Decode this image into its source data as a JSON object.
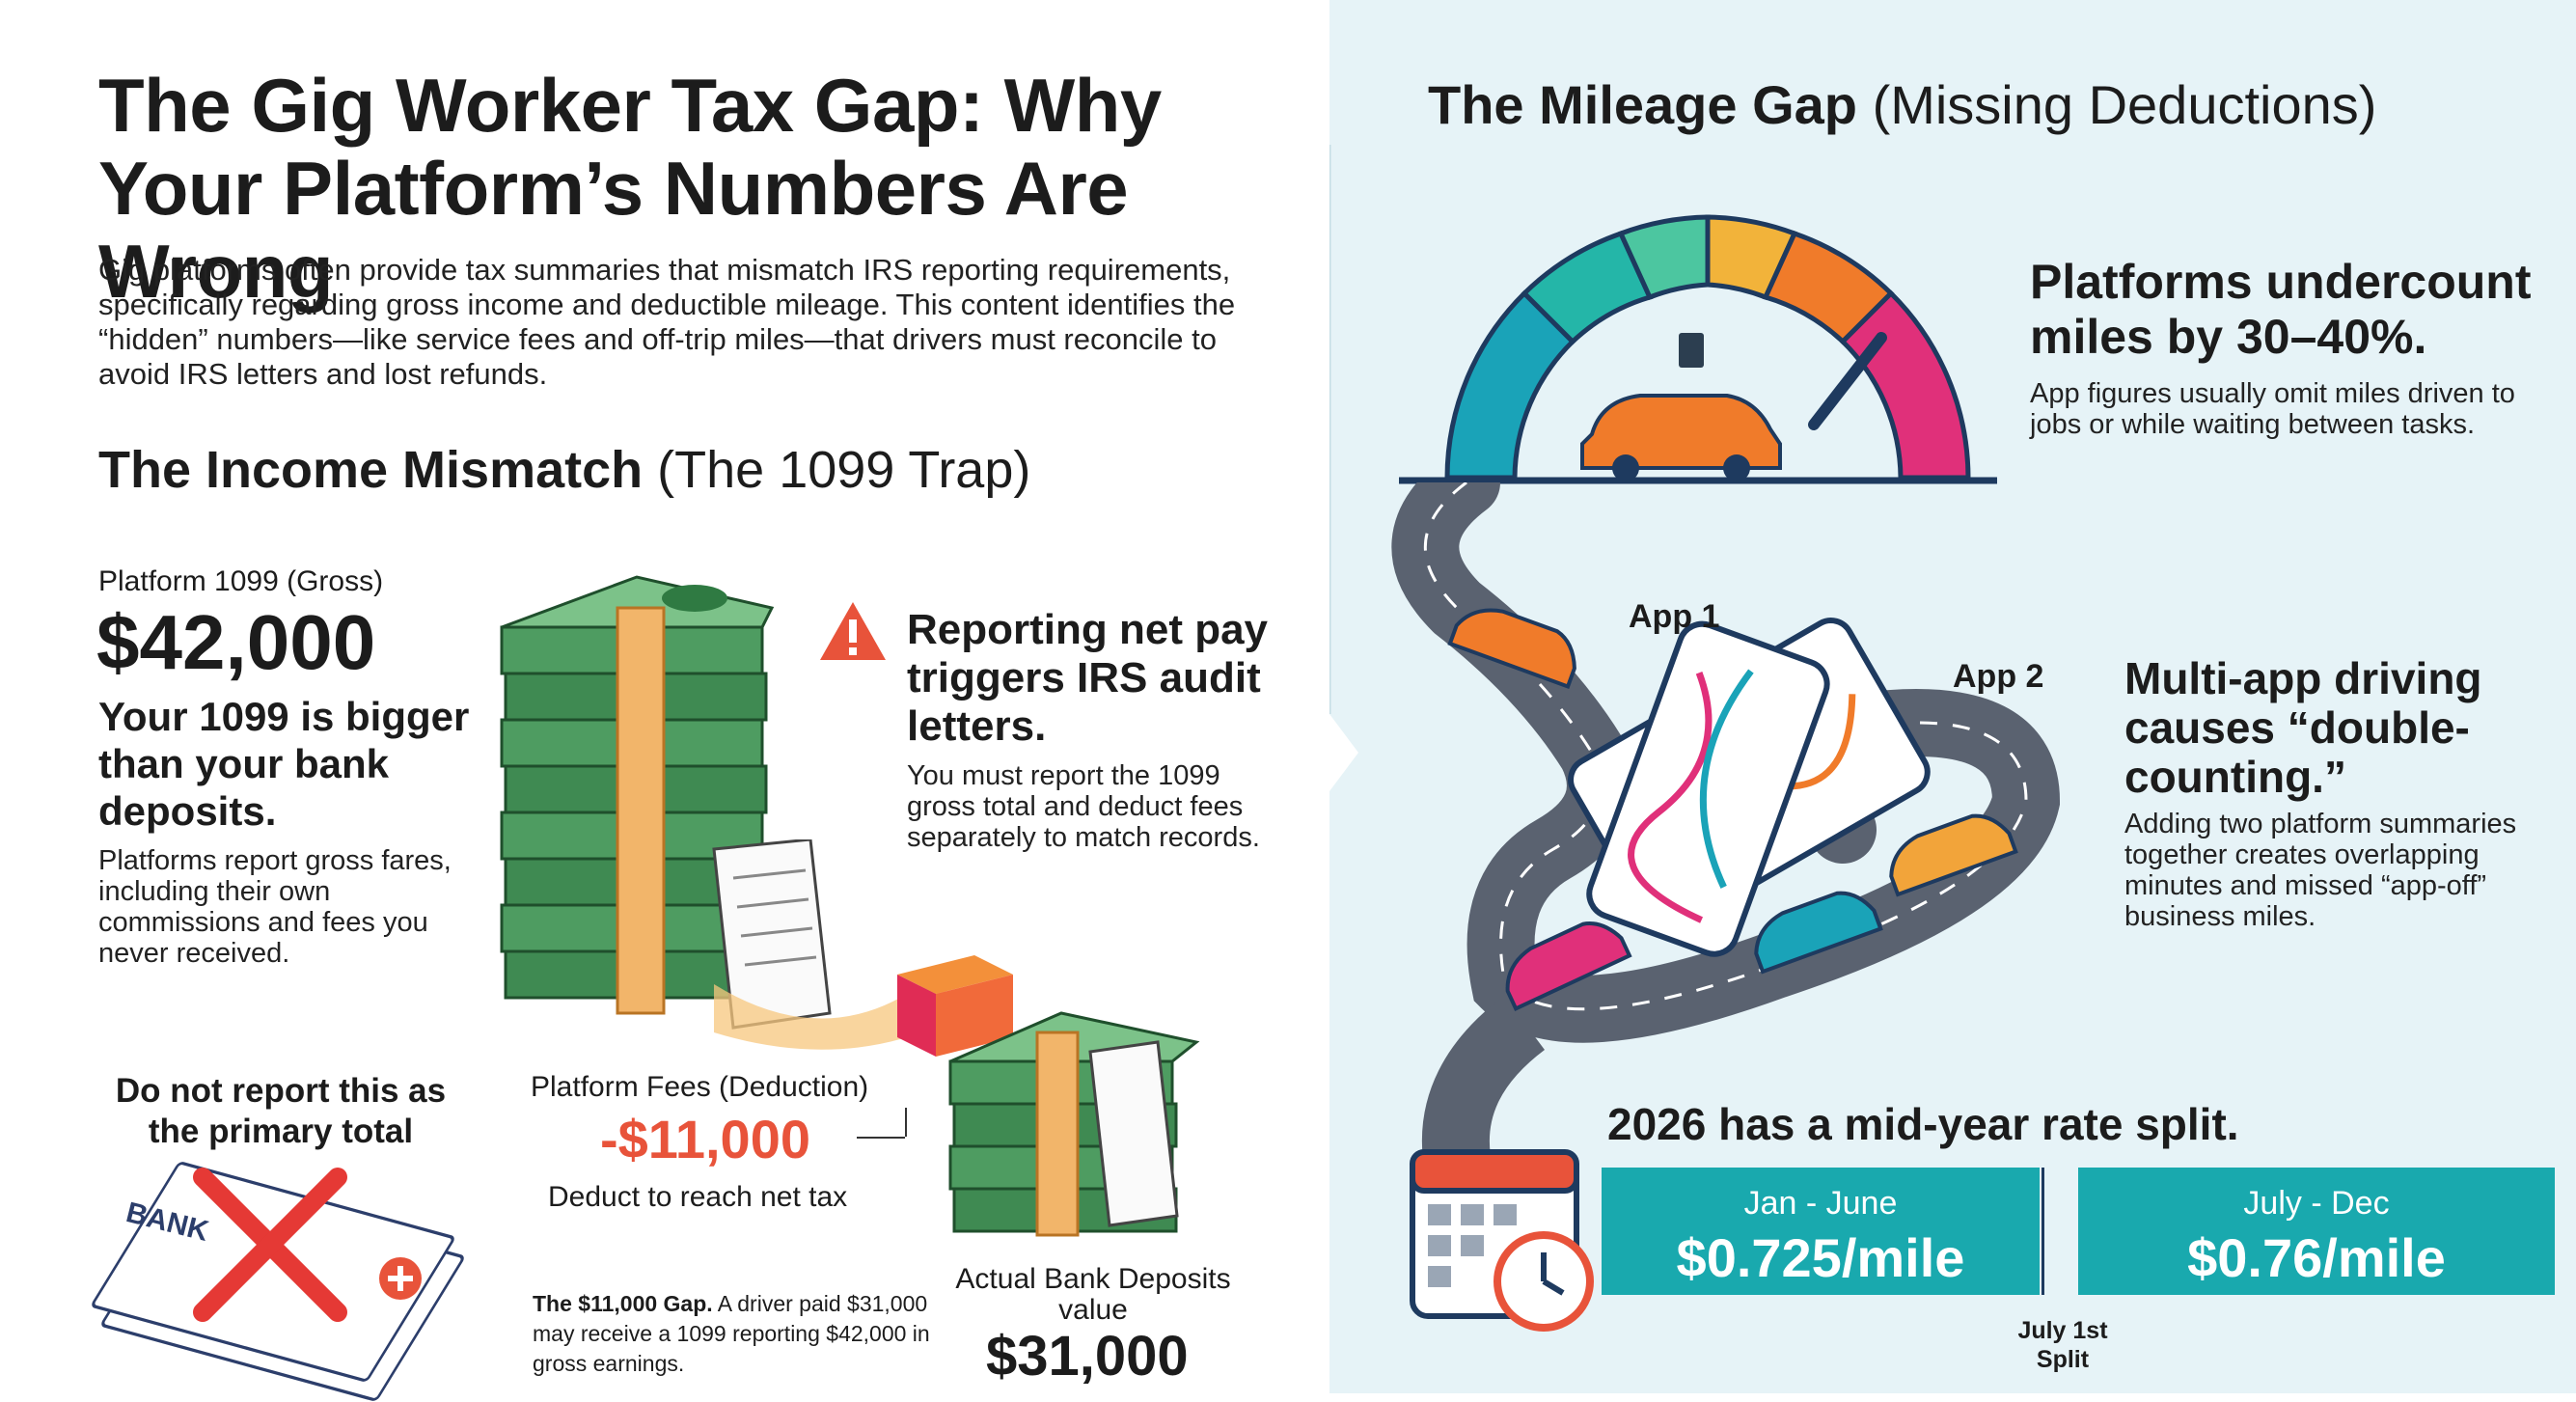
{
  "title": "The Gig Worker Tax Gap: Why Your Platform’s Numbers Are Wrong",
  "intro": "Gig platforms often provide tax summaries that mismatch IRS reporting requirements, specifically regarding gross income and deductible mileage. This content identifies the “hidden” numbers—like service fees and off-trip miles—that drivers must reconcile to avoid IRS letters and lost refunds.",
  "income": {
    "heading_bold": "The Income Mismatch",
    "heading_thin": "(The 1099 Trap)",
    "gross_label": "Platform 1099 (Gross)",
    "gross_value": "$42,000",
    "bigger_heading": "Your 1099 is bigger than your bank deposits.",
    "bigger_text": "Platforms report gross fares, including their own commissions and fees you never received.",
    "warning_heading": "Reporting net pay triggers IRS audit letters.",
    "warning_text": "You must report the 1099 gross total and deduct fees separately to match records.",
    "do_not_report": "Do not report this as the primary total",
    "bank_label": "BANK",
    "fees_label": "Platform Fees (Deduction)",
    "fees_value": "-$11,000",
    "fees_note": "Deduct to reach net tax",
    "gap_bold": "The $11,000 Gap.",
    "gap_text": " A driver paid $31,000 may receive a 1099 reporting $42,000 in gross earnings.",
    "deposits_label": "Actual Bank Deposits value",
    "deposits_value": "$31,000"
  },
  "mileage": {
    "heading_bold": "The Mileage Gap",
    "heading_thin": "(Missing Deductions)",
    "undercount_heading": "Platforms undercount miles by 30–40%.",
    "undercount_text": "App figures usually omit miles driven to jobs or while waiting between tasks.",
    "app1": "App 1",
    "app2": "App 2",
    "multi_heading": "Multi-app driving causes “double-counting.”",
    "multi_text": "Adding two platform summaries together creates overlapping minutes and missed “app-off” business miles.",
    "rate_heading": "2026 has a mid-year rate split.",
    "rates": [
      {
        "period": "Jan - June",
        "value": "$0.725/mile"
      },
      {
        "period": "July - Dec",
        "value": "$0.76/mile"
      }
    ],
    "split_label": "July 1st Split"
  },
  "colors": {
    "teal": "#19a9ae",
    "bg_right": "#e6f3f7",
    "red_x": "#e53935",
    "money_green": "#3c8a4f",
    "orange_accent": "#f08c1e"
  }
}
